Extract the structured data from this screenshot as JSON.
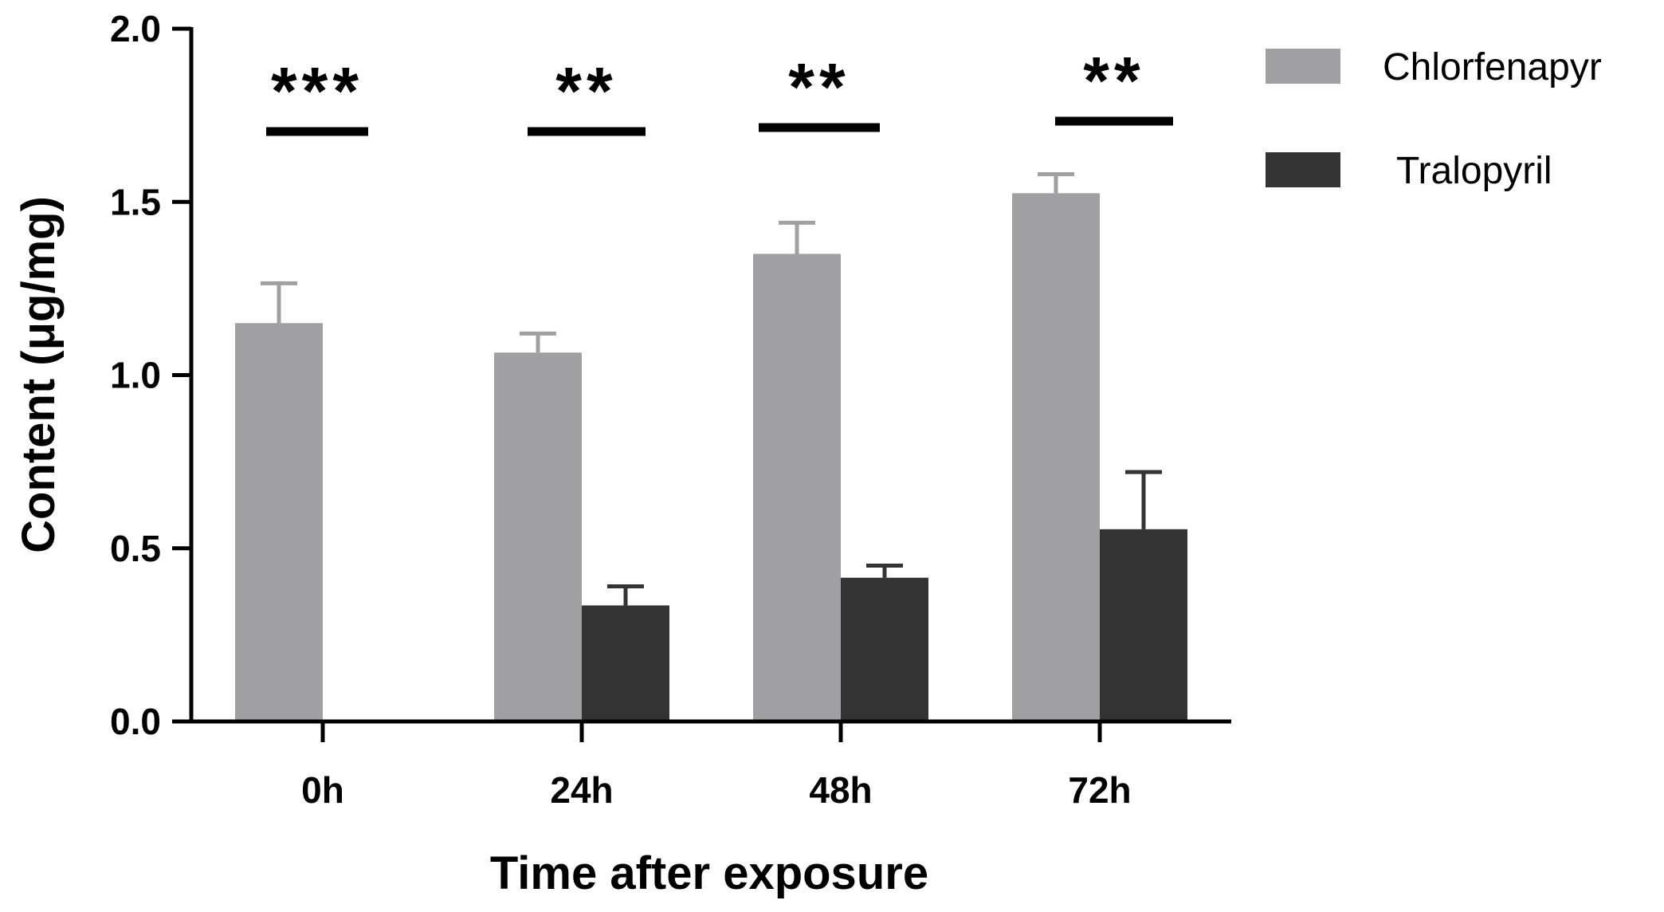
{
  "chart_data": {
    "type": "bar",
    "xlabel": "Time after exposure",
    "ylabel": "Content (μg/mg)",
    "ylim": [
      0,
      2.0
    ],
    "yticks": [
      "0.0",
      "0.5",
      "1.0",
      "1.5",
      "2.0"
    ],
    "categories": [
      "0h",
      "24h",
      "48h",
      "72h"
    ],
    "series": [
      {
        "name": "Chlorfenapyr",
        "color": "#a0a0a3",
        "values": [
          1.15,
          1.065,
          1.35,
          1.525
        ],
        "errors": [
          0.115,
          0.055,
          0.09,
          0.055
        ]
      },
      {
        "name": "Tralopyril",
        "color": "#333333",
        "values": [
          0,
          0.335,
          0.415,
          0.555
        ],
        "errors": [
          0,
          0.055,
          0.035,
          0.165
        ]
      }
    ],
    "significance": [
      "***",
      "**",
      "**",
      "**"
    ],
    "legend_position": "top-right"
  }
}
